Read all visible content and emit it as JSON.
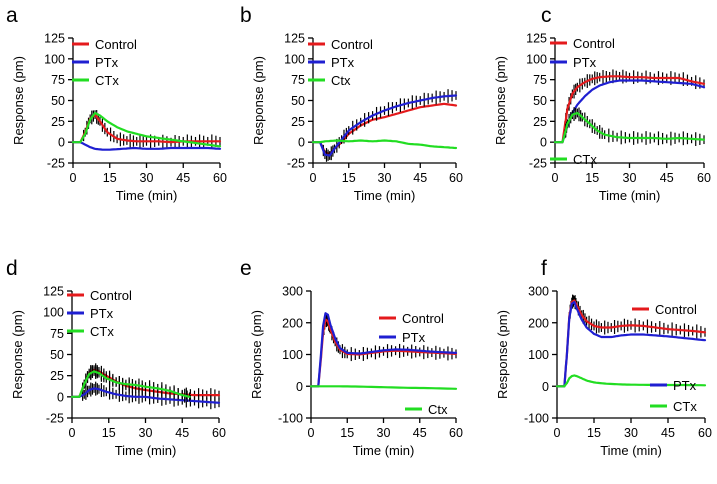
{
  "chart_data": [
    {
      "panel": "a",
      "type": "line",
      "xlabel": "Time (min)",
      "ylabel": "Response (pm)",
      "xlim": [
        0,
        60
      ],
      "ylim": [
        -25,
        125
      ],
      "xticks": [
        0,
        15,
        30,
        45,
        60
      ],
      "yticks": [
        -25,
        0,
        25,
        50,
        75,
        100,
        125
      ],
      "legend_position": "top-right",
      "series": [
        {
          "name": "Control",
          "color": "#e41a1c",
          "error_bars": true,
          "x": [
            0,
            3,
            5,
            7,
            9,
            11,
            14,
            18,
            22,
            26,
            30,
            35,
            40,
            45,
            50,
            55,
            60
          ],
          "y": [
            0,
            0,
            12,
            28,
            33,
            25,
            12,
            4,
            2,
            1,
            1,
            1,
            0,
            1,
            1,
            1,
            1
          ]
        },
        {
          "name": "PTx",
          "color": "#1f1fd1",
          "error_bars": false,
          "x": [
            0,
            3,
            5,
            7,
            9,
            12,
            15,
            20,
            25,
            30,
            35,
            40,
            45,
            50,
            55,
            60
          ],
          "y": [
            0,
            0,
            -3,
            -6,
            -8,
            -9,
            -9,
            -8,
            -7,
            -8,
            -8,
            -7,
            -7,
            -7,
            -7,
            -8
          ]
        },
        {
          "name": "CTx",
          "color": "#22dd22",
          "error_bars": false,
          "x": [
            0,
            3,
            5,
            7,
            9,
            11,
            14,
            18,
            22,
            26,
            30,
            35,
            40,
            45,
            50,
            55,
            60
          ],
          "y": [
            0,
            0,
            10,
            27,
            35,
            32,
            25,
            18,
            13,
            10,
            7,
            5,
            3,
            1,
            -1,
            -3,
            -5
          ]
        }
      ]
    },
    {
      "panel": "b",
      "type": "line",
      "xlabel": "Time (min)",
      "ylabel": "Response (pm)",
      "xlim": [
        0,
        60
      ],
      "ylim": [
        -25,
        125
      ],
      "xticks": [
        0,
        15,
        30,
        45,
        60
      ],
      "yticks": [
        -25,
        0,
        25,
        50,
        75,
        100,
        125
      ],
      "legend_position": "top-right",
      "series": [
        {
          "name": "Control",
          "color": "#e41a1c",
          "error_bars": false,
          "x": [
            0,
            3,
            5,
            7,
            9,
            12,
            15,
            20,
            25,
            30,
            35,
            40,
            45,
            50,
            55,
            60
          ],
          "y": [
            0,
            0,
            -12,
            -14,
            -8,
            0,
            10,
            20,
            27,
            30,
            34,
            38,
            42,
            44,
            46,
            44
          ]
        },
        {
          "name": "PTx",
          "color": "#1f1fd1",
          "error_bars": true,
          "x": [
            0,
            3,
            5,
            7,
            9,
            12,
            15,
            20,
            25,
            30,
            35,
            40,
            45,
            50,
            55,
            60
          ],
          "y": [
            0,
            0,
            -15,
            -16,
            -8,
            3,
            14,
            24,
            32,
            38,
            43,
            47,
            50,
            53,
            55,
            56
          ]
        },
        {
          "name": "Ctx",
          "color": "#22dd22",
          "error_bars": false,
          "x": [
            0,
            3,
            5,
            10,
            15,
            20,
            25,
            30,
            35,
            40,
            45,
            50,
            55,
            60
          ],
          "y": [
            0,
            0,
            1,
            2,
            1,
            2,
            1,
            2,
            1,
            -2,
            -3,
            -5,
            -6,
            -7
          ]
        }
      ]
    },
    {
      "panel": "c",
      "type": "line",
      "xlabel": "Time (min)",
      "ylabel": "Response (pm)",
      "xlim": [
        0,
        60
      ],
      "ylim": [
        -25,
        125
      ],
      "xticks": [
        0,
        15,
        30,
        45,
        60
      ],
      "yticks": [
        -25,
        0,
        25,
        50,
        75,
        100,
        125
      ],
      "legend_position": "top-right, CTx bottom",
      "series": [
        {
          "name": "Control",
          "color": "#e41a1c",
          "error_bars": true,
          "x": [
            0,
            3,
            4,
            5,
            7,
            9,
            12,
            15,
            18,
            22,
            26,
            30,
            35,
            40,
            45,
            50,
            55,
            60
          ],
          "y": [
            0,
            0,
            20,
            40,
            58,
            66,
            72,
            76,
            78,
            79,
            79,
            78,
            78,
            77,
            77,
            77,
            73,
            70
          ]
        },
        {
          "name": "PTx",
          "color": "#1f1fd1",
          "error_bars": false,
          "x": [
            0,
            3,
            4,
            5,
            7,
            9,
            12,
            15,
            18,
            22,
            26,
            30,
            35,
            40,
            45,
            50,
            55,
            60
          ],
          "y": [
            0,
            0,
            10,
            20,
            35,
            45,
            55,
            63,
            68,
            72,
            74,
            74,
            74,
            73,
            72,
            71,
            70,
            66
          ]
        },
        {
          "name": "CTx",
          "color": "#22dd22",
          "error_bars": true,
          "x": [
            0,
            3,
            4,
            5,
            7,
            9,
            11,
            14,
            17,
            20,
            25,
            30,
            35,
            40,
            45,
            50,
            55,
            60
          ],
          "y": [
            0,
            0,
            10,
            22,
            33,
            35,
            30,
            22,
            14,
            9,
            6,
            5,
            5,
            5,
            4,
            5,
            4,
            3
          ]
        }
      ]
    },
    {
      "panel": "d",
      "type": "line",
      "xlabel": "Time (min)",
      "ylabel": "Response (pm)",
      "xlim": [
        0,
        60
      ],
      "ylim": [
        -25,
        125
      ],
      "xticks": [
        0,
        15,
        30,
        45,
        60
      ],
      "yticks": [
        -25,
        0,
        25,
        50,
        75,
        100,
        125
      ],
      "legend_position": "top-right",
      "series": [
        {
          "name": "Control",
          "color": "#e41a1c",
          "error_bars": true,
          "x": [
            0,
            3,
            5,
            7,
            9,
            11,
            14,
            18,
            22,
            26,
            30,
            35,
            40,
            45,
            50,
            55,
            60
          ],
          "y": [
            0,
            0,
            15,
            28,
            32,
            30,
            25,
            18,
            13,
            10,
            8,
            6,
            4,
            3,
            2,
            2,
            2
          ]
        },
        {
          "name": "PTx",
          "color": "#1f1fd1",
          "error_bars": true,
          "x": [
            0,
            3,
            5,
            7,
            9,
            11,
            14,
            18,
            22,
            26,
            30,
            35,
            40,
            45,
            50,
            55,
            60
          ],
          "y": [
            0,
            0,
            3,
            8,
            10,
            9,
            6,
            3,
            1,
            0,
            0,
            -2,
            -3,
            -4,
            -5,
            -6,
            -7
          ]
        },
        {
          "name": "CTx",
          "color": "#22dd22",
          "error_bars": true,
          "x": [
            0,
            3,
            5,
            7,
            9,
            11,
            14,
            18,
            22,
            26,
            30,
            35,
            40,
            45,
            48
          ],
          "y": [
            0,
            0,
            15,
            27,
            30,
            28,
            22,
            17,
            15,
            14,
            12,
            10,
            7,
            2,
            0
          ]
        }
      ]
    },
    {
      "panel": "e",
      "type": "line",
      "xlabel": "Time (min)",
      "ylabel": "Response (pm)",
      "xlim": [
        0,
        60
      ],
      "ylim": [
        -100,
        300
      ],
      "xticks": [
        0,
        15,
        30,
        45,
        60
      ],
      "yticks": [
        -100,
        0,
        100,
        200,
        300
      ],
      "legend_position": "center-right, Ctx bottom-right",
      "series": [
        {
          "name": "Control",
          "color": "#e41a1c",
          "error_bars": true,
          "x": [
            0,
            3,
            4,
            5,
            6,
            7,
            8,
            10,
            12,
            15,
            20,
            25,
            30,
            35,
            40,
            45,
            50,
            55,
            60
          ],
          "y": [
            0,
            0,
            80,
            170,
            210,
            205,
            180,
            140,
            115,
            102,
            100,
            105,
            110,
            112,
            110,
            108,
            106,
            104,
            102
          ]
        },
        {
          "name": "PTx",
          "color": "#1f1fd1",
          "error_bars": false,
          "x": [
            0,
            3,
            4,
            5,
            6,
            7,
            8,
            10,
            12,
            15,
            20,
            25,
            30,
            35,
            40,
            45,
            50,
            55,
            60
          ],
          "y": [
            0,
            0,
            90,
            190,
            230,
            225,
            195,
            150,
            120,
            105,
            103,
            108,
            113,
            116,
            115,
            112,
            109,
            107,
            105
          ]
        },
        {
          "name": "Ctx",
          "color": "#22dd22",
          "error_bars": false,
          "x": [
            0,
            5,
            10,
            20,
            30,
            40,
            50,
            60
          ],
          "y": [
            0,
            0,
            0,
            -1,
            -3,
            -5,
            -6,
            -8
          ]
        }
      ]
    },
    {
      "panel": "f",
      "type": "line",
      "xlabel": "Time (min)",
      "ylabel": "Response (pm)",
      "xlim": [
        0,
        60
      ],
      "ylim": [
        -100,
        300
      ],
      "xticks": [
        0,
        15,
        30,
        45,
        60
      ],
      "yticks": [
        -100,
        0,
        100,
        200,
        300
      ],
      "legend_position": "right, split",
      "series": [
        {
          "name": "Control",
          "color": "#e41a1c",
          "error_bars": true,
          "x": [
            0,
            3,
            4,
            5,
            6,
            7,
            8,
            10,
            12,
            15,
            18,
            22,
            26,
            30,
            35,
            40,
            45,
            50,
            55,
            60
          ],
          "y": [
            0,
            0,
            100,
            220,
            265,
            270,
            255,
            225,
            205,
            190,
            185,
            185,
            190,
            192,
            190,
            185,
            180,
            177,
            174,
            170
          ]
        },
        {
          "name": "PTx",
          "color": "#1f1fd1",
          "error_bars": false,
          "x": [
            0,
            3,
            4,
            5,
            6,
            7,
            8,
            10,
            12,
            15,
            18,
            22,
            26,
            30,
            35,
            40,
            45,
            50,
            55,
            60
          ],
          "y": [
            0,
            0,
            100,
            215,
            260,
            265,
            245,
            210,
            185,
            165,
            155,
            155,
            160,
            163,
            163,
            160,
            157,
            153,
            149,
            145
          ]
        },
        {
          "name": "CTx",
          "color": "#22dd22",
          "error_bars": false,
          "x": [
            0,
            3,
            4,
            5,
            6,
            7,
            8,
            10,
            12,
            15,
            20,
            25,
            30,
            40,
            50,
            60
          ],
          "y": [
            0,
            0,
            10,
            25,
            32,
            34,
            32,
            25,
            18,
            12,
            8,
            6,
            5,
            4,
            4,
            3
          ]
        }
      ]
    }
  ]
}
